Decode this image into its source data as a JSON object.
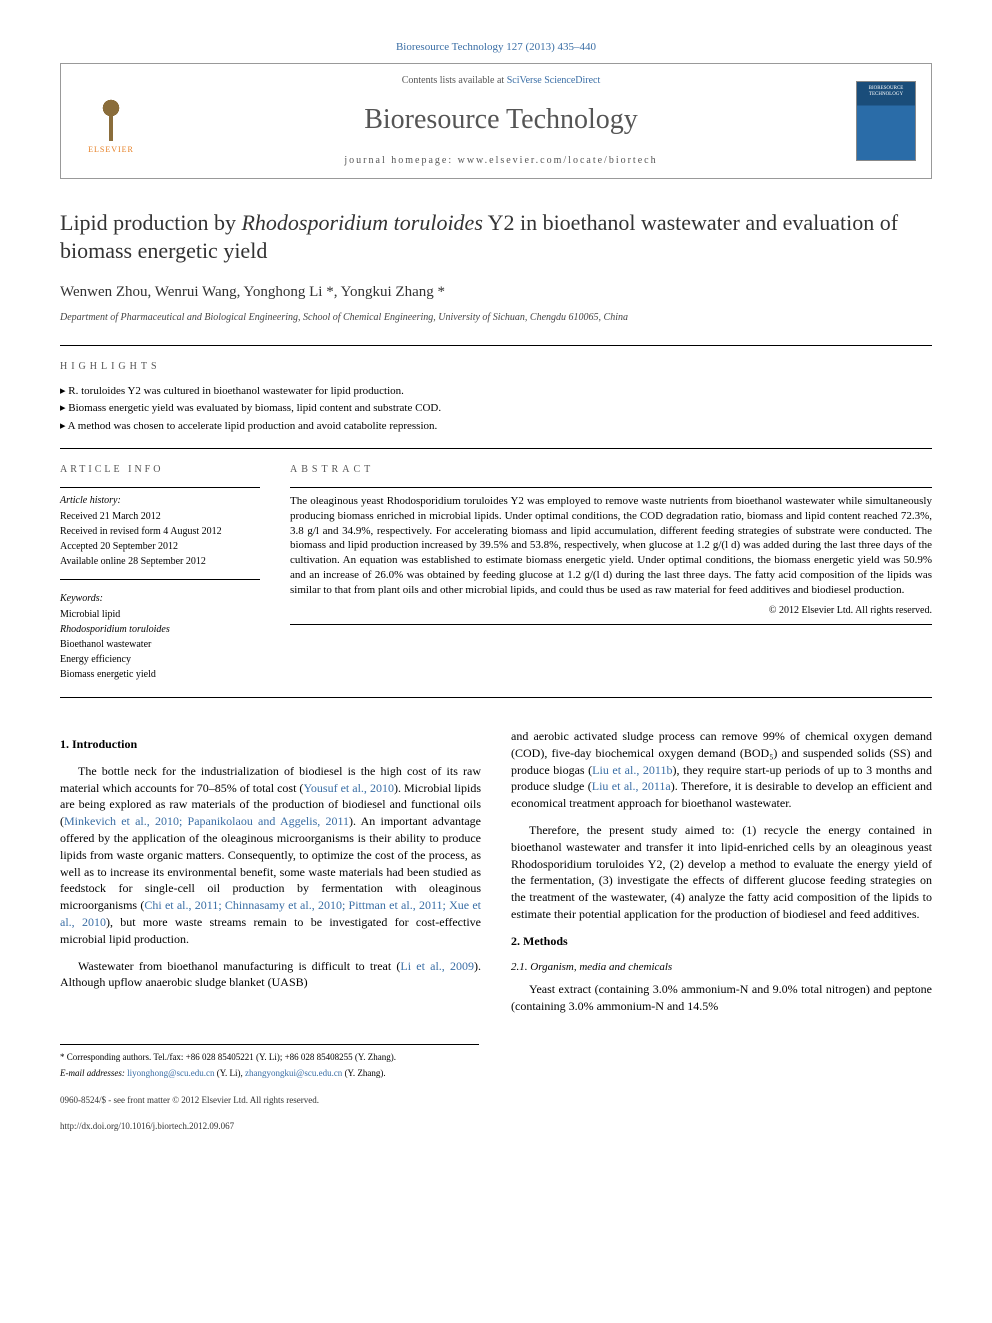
{
  "header": {
    "citation": "Bioresource Technology 127 (2013) 435–440",
    "contents_prefix": "Contents lists available at ",
    "contents_link": "SciVerse ScienceDirect",
    "journal_name": "Bioresource Technology",
    "homepage_prefix": "journal homepage: ",
    "homepage_url": "www.elsevier.com/locate/biortech",
    "publisher_name": "ELSEVIER"
  },
  "article": {
    "title_pre": "Lipid production by ",
    "title_species": "Rhodosporidium toruloides",
    "title_post": " Y2 in bioethanol wastewater and evaluation of biomass energetic yield",
    "authors": "Wenwen Zhou, Wenrui Wang, Yonghong Li *, Yongkui Zhang *",
    "affiliation": "Department of Pharmaceutical and Biological Engineering, School of Chemical Engineering, University of Sichuan, Chengdu 610065, China"
  },
  "highlights": {
    "label": "HIGHLIGHTS",
    "items": [
      "R. toruloides Y2 was cultured in bioethanol wastewater for lipid production.",
      "Biomass energetic yield was evaluated by biomass, lipid content and substrate COD.",
      "A method was chosen to accelerate lipid production and avoid catabolite repression."
    ]
  },
  "article_info": {
    "label": "ARTICLE INFO",
    "history_label": "Article history:",
    "history": [
      "Received 21 March 2012",
      "Received in revised form 4 August 2012",
      "Accepted 20 September 2012",
      "Available online 28 September 2012"
    ],
    "keywords_label": "Keywords:",
    "keywords": [
      "Microbial lipid",
      "Rhodosporidium toruloides",
      "Bioethanol wastewater",
      "Energy efficiency",
      "Biomass energetic yield"
    ]
  },
  "abstract": {
    "label": "ABSTRACT",
    "text": "The oleaginous yeast Rhodosporidium toruloides Y2 was employed to remove waste nutrients from bioethanol wastewater while simultaneously producing biomass enriched in microbial lipids. Under optimal conditions, the COD degradation ratio, biomass and lipid content reached 72.3%, 3.8 g/l and 34.9%, respectively. For accelerating biomass and lipid accumulation, different feeding strategies of substrate were conducted. The biomass and lipid production increased by 39.5% and 53.8%, respectively, when glucose at 1.2 g/(l d) was added during the last three days of the cultivation. An equation was established to estimate biomass energetic yield. Under optimal conditions, the biomass energetic yield was 50.9% and an increase of 26.0% was obtained by feeding glucose at 1.2 g/(l d) during the last three days. The fatty acid composition of the lipids was similar to that from plant oils and other microbial lipids, and could thus be used as raw material for feed additives and biodiesel production.",
    "copyright": "© 2012 Elsevier Ltd. All rights reserved."
  },
  "body": {
    "sec1_heading": "1. Introduction",
    "sec1_p1_a": "The bottle neck for the industrialization of biodiesel is the high cost of its raw material which accounts for 70–85% of total cost (",
    "sec1_p1_cite1": "Yousuf et al., 2010",
    "sec1_p1_b": "). Microbial lipids are being explored as raw materials of the production of biodiesel and functional oils (",
    "sec1_p1_cite2": "Minkevich et al., 2010; Papanikolaou and Aggelis, 2011",
    "sec1_p1_c": "). An important advantage offered by the application of the oleaginous microorganisms is their ability to produce lipids from waste organic matters. Consequently, to optimize the cost of the process, as well as to increase its environmental benefit, some waste materials had been studied as feedstock for single-cell oil production by fermentation with oleaginous microorganisms (",
    "sec1_p1_cite3": "Chi et al., 2011; Chinnasamy et al., 2010; Pittman et al., 2011; Xue et al., 2010",
    "sec1_p1_d": "), but more waste streams remain to be investigated for cost-effective microbial lipid production.",
    "sec1_p2_a": "Wastewater from bioethanol manufacturing is difficult to treat (",
    "sec1_p2_cite1": "Li et al., 2009",
    "sec1_p2_b": "). Although upflow anaerobic sludge blanket (UASB)",
    "sec1_p3_a": "and aerobic activated sludge process can remove 99% of chemical oxygen demand (COD), five-day biochemical oxygen demand (BOD₅) and suspended solids (SS) and produce biogas (",
    "sec1_p3_cite1": "Liu et al., 2011b",
    "sec1_p3_b": "), they require start-up periods of up to 3 months and produce sludge (",
    "sec1_p3_cite2": "Liu et al., 2011a",
    "sec1_p3_c": "). Therefore, it is desirable to develop an efficient and economical treatment approach for bioethanol wastewater.",
    "sec1_p4": "Therefore, the present study aimed to: (1) recycle the energy contained in bioethanol wastewater and transfer it into lipid-enriched cells by an oleaginous yeast Rhodosporidium toruloides Y2, (2) develop a method to evaluate the energy yield of the fermentation, (3) investigate the effects of different glucose feeding strategies on the treatment of the wastewater, (4) analyze the fatty acid composition of the lipids to estimate their potential application for the production of biodiesel and feed additives.",
    "sec2_heading": "2. Methods",
    "sec2_1_heading": "2.1. Organism, media and chemicals",
    "sec2_1_p1": "Yeast extract (containing 3.0% ammonium-N and 9.0% total nitrogen) and peptone (containing 3.0% ammonium-N and 14.5%"
  },
  "footnotes": {
    "corr": "* Corresponding authors. Tel./fax: +86 028 85405221 (Y. Li); +86 028 85408255 (Y. Zhang).",
    "email_label": "E-mail addresses: ",
    "email1": "liyonghong@scu.edu.cn",
    "email1_who": " (Y. Li), ",
    "email2": "zhangyongkui@scu.edu.cn",
    "email2_who": " (Y. Zhang)."
  },
  "footer": {
    "issn": "0960-8524/$ - see front matter © 2012 Elsevier Ltd. All rights reserved.",
    "doi": "http://dx.doi.org/10.1016/j.biortech.2012.09.067"
  },
  "colors": {
    "link": "#3a6ea5",
    "text": "#000000",
    "muted": "#555555"
  }
}
